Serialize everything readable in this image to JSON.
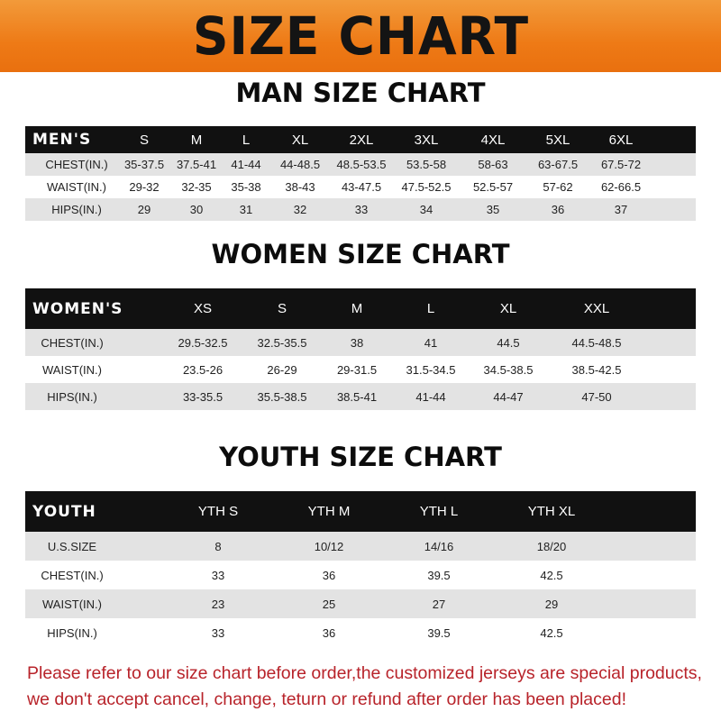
{
  "banner_title": "SIZE CHART",
  "men": {
    "title": "MAN SIZE CHART",
    "header": [
      "MEN'S",
      "S",
      "M",
      "L",
      "XL",
      "2XL",
      "3XL",
      "4XL",
      "5XL",
      "6XL"
    ],
    "rows": [
      [
        "CHEST(IN.)",
        "35-37.5",
        "37.5-41",
        "41-44",
        "44-48.5",
        "48.5-53.5",
        "53.5-58",
        "58-63",
        "63-67.5",
        "67.5-72"
      ],
      [
        "WAIST(IN.)",
        "29-32",
        "32-35",
        "35-38",
        "38-43",
        "43-47.5",
        "47.5-52.5",
        "52.5-57",
        "57-62",
        "62-66.5"
      ],
      [
        "HIPS(IN.)",
        "29",
        "30",
        "31",
        "32",
        "33",
        "34",
        "35",
        "36",
        "37"
      ]
    ]
  },
  "women": {
    "title": "WOMEN SIZE CHART",
    "header": [
      "WOMEN'S",
      "XS",
      "S",
      "M",
      "L",
      "XL",
      "XXL"
    ],
    "rows": [
      [
        "CHEST(IN.)",
        "29.5-32.5",
        "32.5-35.5",
        "38",
        "41",
        "44.5",
        "44.5-48.5"
      ],
      [
        "WAIST(IN.)",
        "23.5-26",
        "26-29",
        "29-31.5",
        "31.5-34.5",
        "34.5-38.5",
        "38.5-42.5"
      ],
      [
        "HIPS(IN.)",
        "33-35.5",
        "35.5-38.5",
        "38.5-41",
        "41-44",
        "44-47",
        "47-50"
      ]
    ]
  },
  "youth": {
    "title": "YOUTH SIZE CHART",
    "header": [
      "YOUTH",
      "YTH S",
      "YTH M",
      "YTH L",
      "YTH XL"
    ],
    "rows": [
      [
        "U.S.SIZE",
        "8",
        "10/12",
        "14/16",
        "18/20"
      ],
      [
        "CHEST(IN.)",
        "33",
        "36",
        "39.5",
        "42.5"
      ],
      [
        "WAIST(IN.)",
        "23",
        "25",
        "27",
        "29"
      ],
      [
        "HIPS(IN.)",
        "33",
        "36",
        "39.5",
        "42.5"
      ]
    ]
  },
  "notice": {
    "line1": "Please refer to our size chart before order,the customized jerseys are special products,",
    "line2": "we don't accept cancel, change, teturn or refund after order has been placed!"
  },
  "colors": {
    "banner": "#ee7a16",
    "header_row": "#111111",
    "stripe": "#e3e3e3",
    "notice": "#b8232a"
  }
}
